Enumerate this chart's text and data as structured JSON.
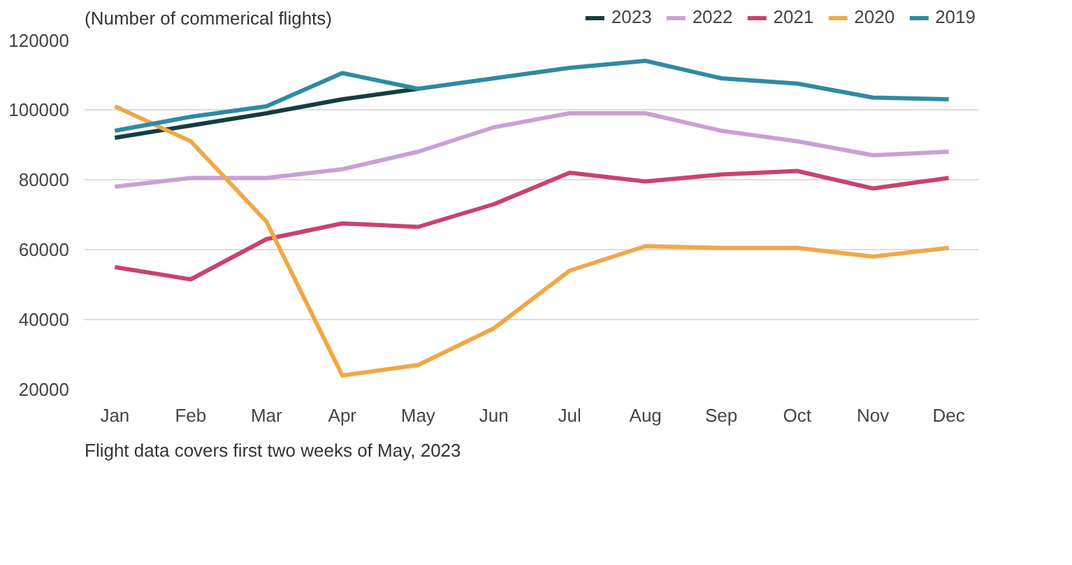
{
  "chart_data": {
    "type": "line",
    "title": "(Number of commerical flights)",
    "categories": [
      "Jan",
      "Feb",
      "Mar",
      "Apr",
      "May",
      "Jun",
      "Jul",
      "Aug",
      "Sep",
      "Oct",
      "Nov",
      "Dec"
    ],
    "series": [
      {
        "name": "2023",
        "color": "#163c40",
        "values": [
          92000,
          95500,
          99000,
          103000,
          106000,
          null,
          null,
          null,
          null,
          null,
          null,
          null
        ]
      },
      {
        "name": "2022",
        "color": "#c9a0d6",
        "values": [
          78000,
          80500,
          80500,
          83000,
          88000,
          95000,
          99000,
          99000,
          94000,
          91000,
          87000,
          88000
        ]
      },
      {
        "name": "2021",
        "color": "#c94271",
        "values": [
          55000,
          51500,
          63000,
          67500,
          66500,
          73000,
          82000,
          79500,
          81500,
          82500,
          77500,
          80500
        ]
      },
      {
        "name": "2020",
        "color": "#f0a848",
        "values": [
          101000,
          91000,
          68000,
          24000,
          27000,
          37500,
          54000,
          61000,
          60500,
          60500,
          58000,
          60500
        ]
      },
      {
        "name": "2019",
        "color": "#2f8aa3",
        "values": [
          94000,
          98000,
          101000,
          110500,
          106000,
          109000,
          112000,
          114000,
          109000,
          107500,
          103500,
          103000
        ]
      }
    ],
    "ylim": [
      20000,
      120000
    ],
    "yticks": [
      20000,
      40000,
      60000,
      80000,
      100000,
      120000
    ],
    "grid": "y",
    "legend": "top",
    "marker": "none",
    "line_style": "solid",
    "annotations": [
      "Flight data covers first two weeks of May, 2023"
    ]
  }
}
